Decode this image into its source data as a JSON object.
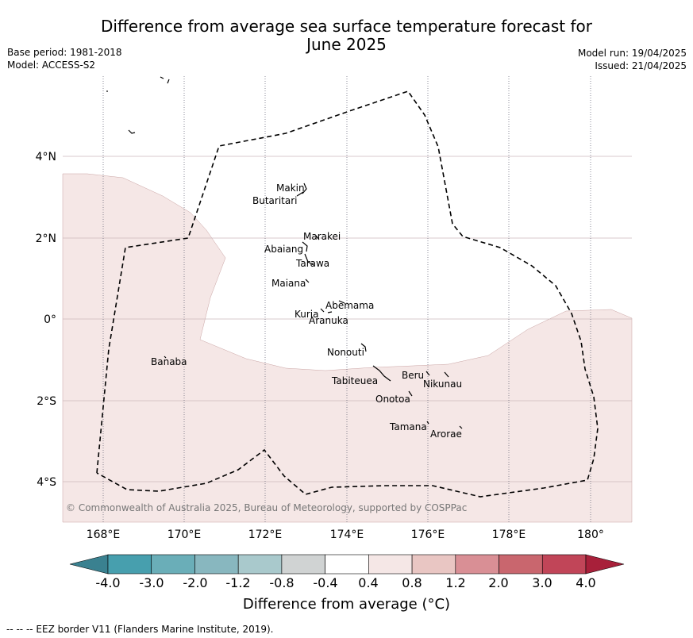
{
  "title": {
    "line1": "Difference from average sea surface temperature forecast for",
    "line2": "June 2025"
  },
  "meta": {
    "base_period": "Base period: 1981-2018",
    "model": "Model: ACCESS-S2",
    "model_run": "Model run: 19/04/2025",
    "issued": "Issued: 21/04/2025"
  },
  "map": {
    "lon_ticks": [
      "168°E",
      "170°E",
      "172°E",
      "174°E",
      "176°E",
      "178°E",
      "180°"
    ],
    "lat_ticks": [
      "4°N",
      "2°N",
      "0°",
      "2°S",
      "4°S"
    ],
    "credit": "© Commonwealth of Australia 2025, Bureau of Meteorology, supported by COSPPac",
    "islands": [
      "Makin",
      "Butaritari",
      "Marakei",
      "Abaiang",
      "Tarawa",
      "Maiana",
      "Abemama",
      "Kuria",
      "Aranuka",
      "Nonouti",
      "Banaba",
      "Beru",
      "Nikunau",
      "Tabiteuea",
      "Onotoa",
      "Tamana",
      "Arorae"
    ],
    "anomaly_fill_color": "#f5e7e6"
  },
  "colorbar": {
    "ticks": [
      "-4.0",
      "-3.0",
      "-2.0",
      "-1.2",
      "-0.8",
      "-0.4",
      "0.4",
      "0.8",
      "1.2",
      "2.0",
      "3.0",
      "4.0"
    ],
    "colors": [
      "#3a8190",
      "#479fae",
      "#6aaeb8",
      "#88b7bf",
      "#a9c9cc",
      "#d0d3d3",
      "#ffffff",
      "#f5e7e6",
      "#e9c6c3",
      "#d98f95",
      "#c9666e",
      "#c14558",
      "#a8203a"
    ],
    "label": "Difference from average (°C)"
  },
  "eez_note": "--  --  -- EEZ border V11 (Flanders Marine Institute, 2019)."
}
